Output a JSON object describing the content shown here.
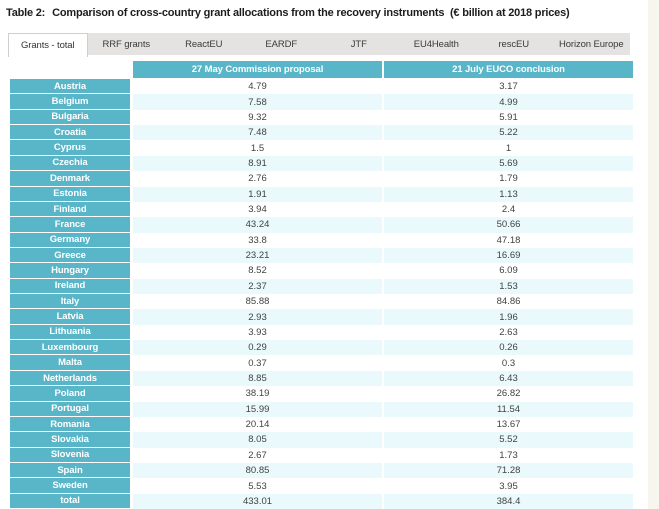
{
  "page": {
    "title_prefix": "Table 2:",
    "title_rest": "Comparison of cross-country grant allocations from the recovery instruments  (€ billion at 2018 prices)"
  },
  "tabs": {
    "active": "Grants - total",
    "items": [
      "Grants - total",
      "RRF grants",
      "ReactEU",
      "EARDF",
      "JTF",
      "EU4Health",
      "rescEU",
      "Horizon Europe"
    ]
  },
  "chart_data": {
    "type": "table",
    "title": "Table 2: Comparison of cross-country grant allocations from the recovery instruments (€ billion at 2018 prices)",
    "columns": [
      "27 May Commission proposal",
      "21 July EUCO conclusion"
    ],
    "rows": [
      {
        "label": "Austria",
        "values": [
          "4.79",
          "3.17"
        ]
      },
      {
        "label": "Belgium",
        "values": [
          "7.58",
          "4.99"
        ]
      },
      {
        "label": "Bulgaria",
        "values": [
          "9.32",
          "5.91"
        ]
      },
      {
        "label": "Croatia",
        "values": [
          "7.48",
          "5.22"
        ]
      },
      {
        "label": "Cyprus",
        "values": [
          "1.5",
          "1"
        ]
      },
      {
        "label": "Czechia",
        "values": [
          "8.91",
          "5.69"
        ]
      },
      {
        "label": "Denmark",
        "values": [
          "2.76",
          "1.79"
        ]
      },
      {
        "label": "Estonia",
        "values": [
          "1.91",
          "1.13"
        ]
      },
      {
        "label": "Finland",
        "values": [
          "3.94",
          "2.4"
        ]
      },
      {
        "label": "France",
        "values": [
          "43.24",
          "50.66"
        ]
      },
      {
        "label": "Germany",
        "values": [
          "33.8",
          "47.18"
        ]
      },
      {
        "label": "Greece",
        "values": [
          "23.21",
          "16.69"
        ]
      },
      {
        "label": "Hungary",
        "values": [
          "8.52",
          "6.09"
        ]
      },
      {
        "label": "Ireland",
        "values": [
          "2.37",
          "1.53"
        ]
      },
      {
        "label": "Italy",
        "values": [
          "85.88",
          "84.86"
        ]
      },
      {
        "label": "Latvia",
        "values": [
          "2.93",
          "1.96"
        ]
      },
      {
        "label": "Lithuania",
        "values": [
          "3.93",
          "2.63"
        ]
      },
      {
        "label": "Luxembourg",
        "values": [
          "0.29",
          "0.26"
        ]
      },
      {
        "label": "Malta",
        "values": [
          "0.37",
          "0.3"
        ]
      },
      {
        "label": "Netherlands",
        "values": [
          "8.85",
          "6.43"
        ]
      },
      {
        "label": "Poland",
        "values": [
          "38.19",
          "26.82"
        ]
      },
      {
        "label": "Portugal",
        "values": [
          "15.99",
          "11.54"
        ]
      },
      {
        "label": "Romania",
        "values": [
          "20.14",
          "13.67"
        ]
      },
      {
        "label": "Slovakia",
        "values": [
          "8.05",
          "5.52"
        ]
      },
      {
        "label": "Slovenia",
        "values": [
          "2.67",
          "1.73"
        ]
      },
      {
        "label": "Spain",
        "values": [
          "80.85",
          "71.28"
        ]
      },
      {
        "label": "Sweden",
        "values": [
          "5.53",
          "3.95"
        ]
      },
      {
        "label": "total",
        "values": [
          "433.01",
          "384.4"
        ]
      }
    ]
  },
  "colors": {
    "teal": "#58b6c8",
    "row_tint": "#e9f9fc",
    "tab_bg": "#e4e3e2",
    "page_edge": "#f6f5ee",
    "value_text": "#424242"
  }
}
